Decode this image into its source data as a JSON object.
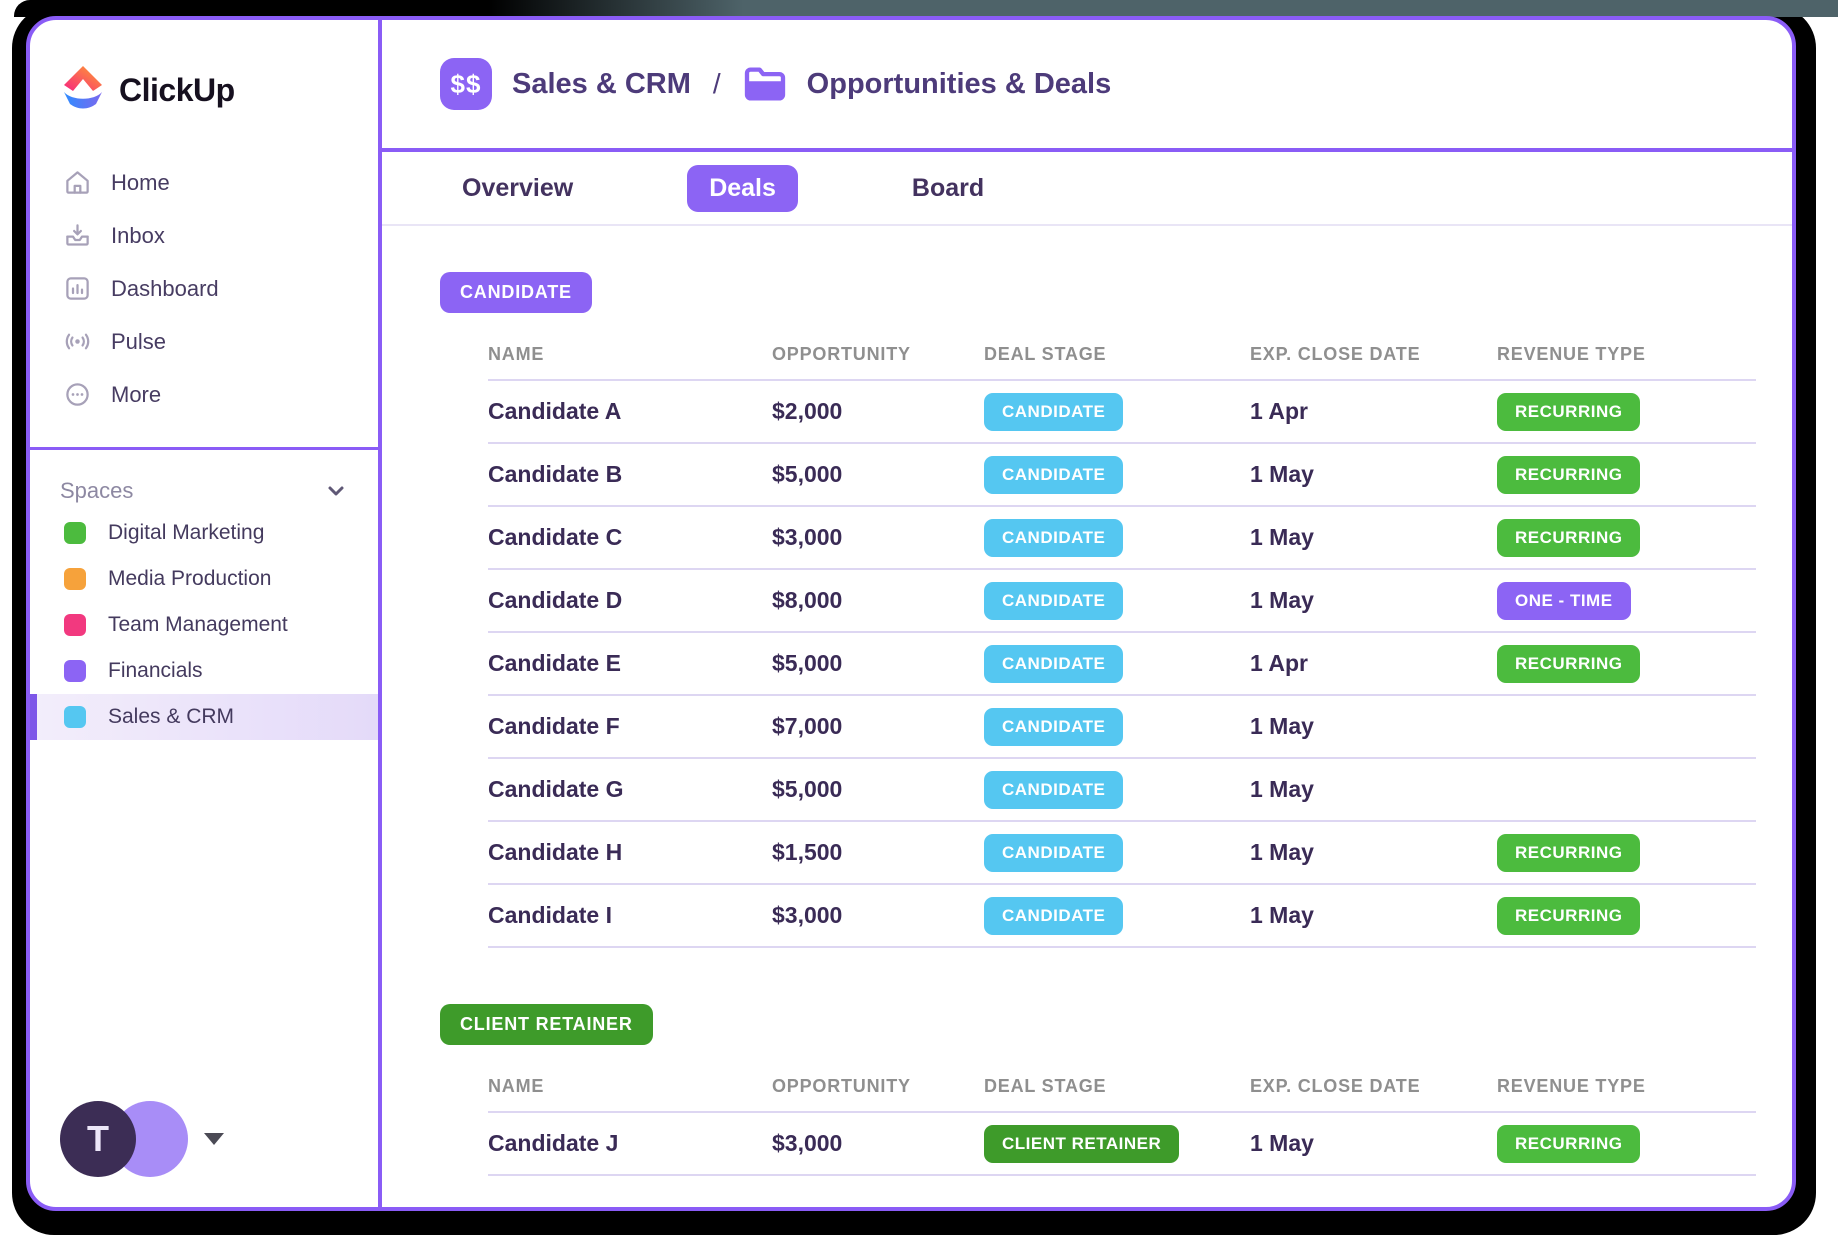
{
  "brand": {
    "wordmark": "ClickUp"
  },
  "sidebar": {
    "nav": [
      {
        "label": "Home"
      },
      {
        "label": "Inbox"
      },
      {
        "label": "Dashboard"
      },
      {
        "label": "Pulse"
      },
      {
        "label": "More"
      }
    ],
    "spaces_label": "Spaces",
    "spaces": [
      {
        "label": "Digital Marketing",
        "color": "#4cbb3e",
        "selected": false
      },
      {
        "label": "Media Production",
        "color": "#f6a23b",
        "selected": false
      },
      {
        "label": "Team Management",
        "color": "#f2397f",
        "selected": false
      },
      {
        "label": "Financials",
        "color": "#8c64f4",
        "selected": false
      },
      {
        "label": "Sales & CRM",
        "color": "#55c7f1",
        "selected": true
      }
    ],
    "user_initial": "T"
  },
  "header": {
    "icon_label": "$$",
    "crumb1": "Sales & CRM",
    "separator": "/",
    "crumb2": "Opportunities & Deals"
  },
  "tabs": [
    {
      "label": "Overview",
      "active": false
    },
    {
      "label": "Deals",
      "active": true
    },
    {
      "label": "Board",
      "active": false
    }
  ],
  "table": {
    "columns": [
      "NAME",
      "OPPORTUNITY",
      "DEAL STAGE",
      "EXP. CLOSE DATE",
      "REVENUE TYPE"
    ],
    "groups": [
      {
        "label": "CANDIDATE",
        "color": "#8c64f4",
        "rows": [
          {
            "name": "Candidate A",
            "opportunity": "$2,000",
            "stage": "CANDIDATE",
            "stage_color": "#55c7f1",
            "close_date": "1 Apr",
            "revenue": "RECURRING",
            "revenue_color": "#4cbb3e"
          },
          {
            "name": "Candidate B",
            "opportunity": "$5,000",
            "stage": "CANDIDATE",
            "stage_color": "#55c7f1",
            "close_date": "1 May",
            "revenue": "RECURRING",
            "revenue_color": "#4cbb3e"
          },
          {
            "name": "Candidate C",
            "opportunity": "$3,000",
            "stage": "CANDIDATE",
            "stage_color": "#55c7f1",
            "close_date": "1 May",
            "revenue": "RECURRING",
            "revenue_color": "#4cbb3e"
          },
          {
            "name": "Candidate D",
            "opportunity": "$8,000",
            "stage": "CANDIDATE",
            "stage_color": "#55c7f1",
            "close_date": "1 May",
            "revenue": "ONE - TIME",
            "revenue_color": "#8c64f4"
          },
          {
            "name": "Candidate E",
            "opportunity": "$5,000",
            "stage": "CANDIDATE",
            "stage_color": "#55c7f1",
            "close_date": "1 Apr",
            "revenue": "RECURRING",
            "revenue_color": "#4cbb3e"
          },
          {
            "name": "Candidate F",
            "opportunity": "$7,000",
            "stage": "CANDIDATE",
            "stage_color": "#55c7f1",
            "close_date": "1 May",
            "revenue": "",
            "revenue_color": ""
          },
          {
            "name": "Candidate G",
            "opportunity": "$5,000",
            "stage": "CANDIDATE",
            "stage_color": "#55c7f1",
            "close_date": "1 May",
            "revenue": "",
            "revenue_color": ""
          },
          {
            "name": "Candidate H",
            "opportunity": "$1,500",
            "stage": "CANDIDATE",
            "stage_color": "#55c7f1",
            "close_date": "1 May",
            "revenue": "RECURRING",
            "revenue_color": "#4cbb3e"
          },
          {
            "name": "Candidate I",
            "opportunity": "$3,000",
            "stage": "CANDIDATE",
            "stage_color": "#55c7f1",
            "close_date": "1 May",
            "revenue": "RECURRING",
            "revenue_color": "#4cbb3e"
          }
        ]
      },
      {
        "label": "CLIENT RETAINER",
        "color": "#3e9b2a",
        "rows": [
          {
            "name": "Candidate J",
            "opportunity": "$3,000",
            "stage": "CLIENT RETAINER",
            "stage_color": "#3e9b2a",
            "close_date": "1 May",
            "revenue": "RECURRING",
            "revenue_color": "#4cbb3e"
          }
        ]
      }
    ]
  },
  "colors": {
    "accent_purple": "#8a5cf6",
    "stage_cyan": "#55c7f1",
    "recurring_green": "#4cbb3e",
    "retainer_green": "#3e9b2a"
  }
}
